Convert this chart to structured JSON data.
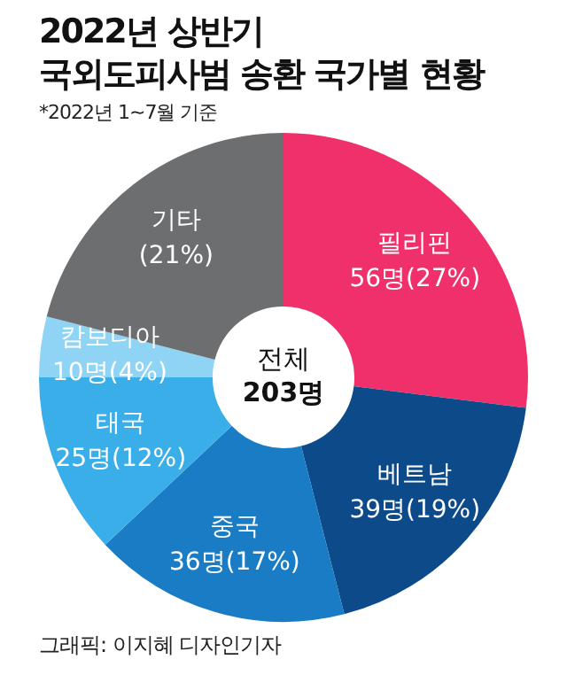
{
  "chart_data": {
    "type": "donut",
    "title": "2022년 상반기\n국외도피사범 송환 국가별 현황",
    "subtitle": "*2022년 1~7월 기준",
    "categories": [
      "필리핀",
      "베트남",
      "중국",
      "태국",
      "캄보디아",
      "기타"
    ],
    "values": [
      27,
      19,
      17,
      12,
      4,
      21
    ],
    "colors": [
      "#f0306a",
      "#0d4a8a",
      "#1a7cc4",
      "#3aaee8",
      "#8fd3f5",
      "#6d6e70"
    ],
    "value_labels": [
      "56명(27%)",
      "39명(19%)",
      "36명(17%)",
      "25명(12%)",
      "10명(4%)",
      "(21%)"
    ],
    "annotations": [
      "전체\n203명",
      "그래픽: 이지혜 디자인기자"
    ],
    "legend": false
  }
}
